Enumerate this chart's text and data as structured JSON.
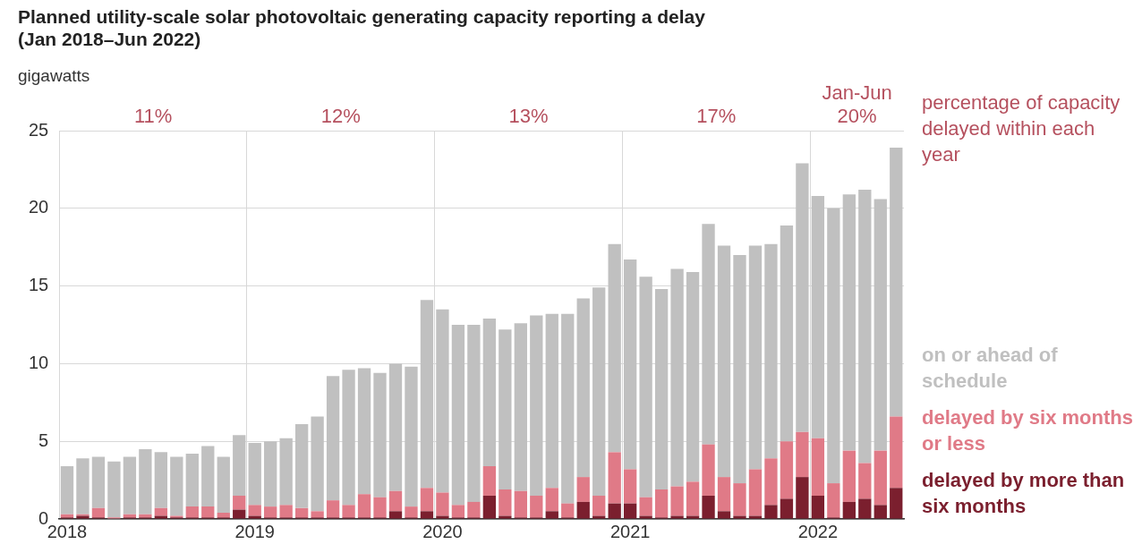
{
  "chart_data": {
    "type": "bar",
    "title": "Planned utility-scale solar photovoltaic generating capacity reporting a delay",
    "subtitle": "(Jan 2018–Jun 2022)",
    "ylabel": "gigawatts",
    "categories": [
      "2018",
      null,
      null,
      null,
      null,
      null,
      null,
      null,
      null,
      null,
      null,
      null,
      "2019",
      null,
      null,
      null,
      null,
      null,
      null,
      null,
      null,
      null,
      null,
      null,
      "2020",
      null,
      null,
      null,
      null,
      null,
      null,
      null,
      null,
      null,
      null,
      null,
      "2021",
      null,
      null,
      null,
      null,
      null,
      null,
      null,
      null,
      null,
      null,
      null,
      "2022",
      null,
      null,
      null,
      null,
      null
    ],
    "stacked": true,
    "series": [
      {
        "name": "delayed by more than six months",
        "color": "#7b1f2e",
        "values": [
          0.1,
          0.2,
          0.1,
          0,
          0.1,
          0.1,
          0.2,
          0.1,
          0.1,
          0.1,
          0.1,
          0.6,
          0.2,
          0.1,
          0.1,
          0.1,
          0.1,
          0.1,
          0.1,
          0.1,
          0.1,
          0.5,
          0.1,
          0.5,
          0.2,
          0.1,
          0.1,
          1.5,
          0.2,
          0.1,
          0.1,
          0.5,
          0.1,
          1.1,
          0.2,
          1.0,
          1.0,
          0.2,
          0.1,
          0.2,
          0.2,
          1.5,
          0.5,
          0.2,
          0.2,
          0.9,
          1.3,
          2.7,
          1.5,
          0.1,
          1.1,
          1.3,
          0.9,
          2.0
        ]
      },
      {
        "name": "delayed by six months or less",
        "color": "#e07a87",
        "values": [
          0.2,
          0.1,
          0.6,
          0.1,
          0.2,
          0.2,
          0.5,
          0.1,
          0.7,
          0.7,
          0.3,
          0.9,
          0.7,
          0.7,
          0.8,
          0.6,
          0.4,
          1.1,
          0.8,
          1.5,
          1.3,
          1.3,
          0.7,
          1.5,
          1.5,
          0.8,
          1.0,
          1.9,
          1.7,
          1.7,
          1.4,
          1.5,
          0.9,
          1.6,
          1.3,
          3.3,
          2.2,
          1.2,
          1.8,
          1.9,
          2.2,
          3.3,
          2.2,
          2.1,
          3.0,
          3.0,
          3.7,
          2.9,
          3.7,
          2.2,
          3.3,
          2.3,
          3.5,
          4.6
        ]
      },
      {
        "name": "on or ahead of schedule",
        "color": "#c0c0c0",
        "values": [
          3.1,
          3.6,
          3.3,
          3.6,
          3.7,
          4.2,
          3.6,
          3.8,
          3.4,
          3.9,
          3.6,
          3.9,
          4.0,
          4.2,
          4.3,
          5.4,
          6.1,
          8.0,
          8.7,
          8.1,
          8.0,
          8.2,
          9.0,
          12.1,
          11.8,
          11.6,
          11.4,
          9.5,
          10.3,
          10.8,
          11.6,
          11.2,
          12.2,
          11.5,
          13.4,
          13.4,
          13.5,
          14.2,
          12.9,
          14.0,
          13.5,
          14.2,
          14.9,
          14.7,
          14.4,
          13.8,
          13.9,
          17.3,
          15.6,
          17.7,
          16.5,
          17.6,
          16.2,
          17.3
        ]
      }
    ],
    "ylim": [
      0,
      25
    ],
    "yticks": [
      0,
      5,
      10,
      15,
      20,
      25
    ],
    "grid": true,
    "legend": "right",
    "annotations": [
      "11%",
      "12%",
      "13%",
      "17%",
      "Jan-Jun\n20%",
      "percentage of capacity delayed within each year"
    ]
  }
}
